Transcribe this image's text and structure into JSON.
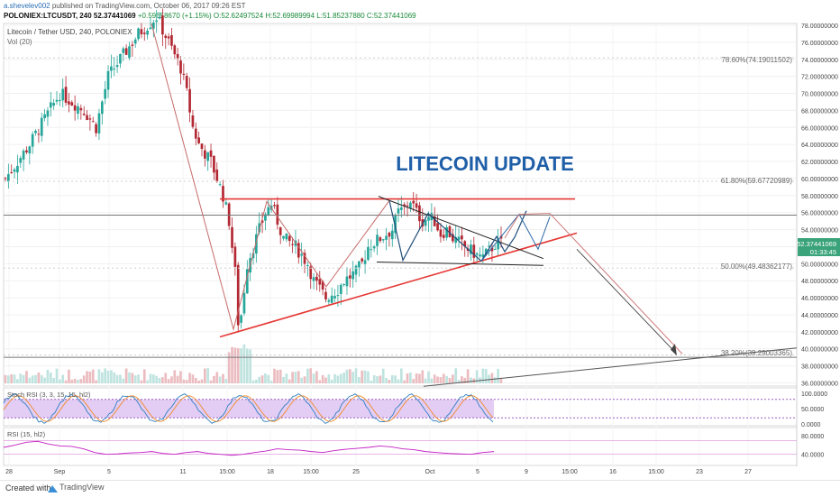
{
  "header": {
    "publisher": "a.shevelev002",
    "published_line": "published on TradingView.com, October 06, 2017 09:26 EST",
    "ticker": "POLONIEX:LTCUSDT, 240",
    "last": "52.37441069",
    "change": "+0.59658670 (+1.15%)",
    "o": "O:52.62497524",
    "h": "H:52.69989994",
    "l": "L:51.85237880",
    "c": "C:52.37441069"
  },
  "legend": {
    "symbol": "Litecoin / Tether USD, 240, POLONIEX",
    "vol": "Vol (20)",
    "stoch": "Stoch RSI (3, 3, 15, 15, hl2)",
    "rsi": "RSI (15, hl2)"
  },
  "annotation": {
    "headline": "LITECOIN UPDATE"
  },
  "fib_labels": {
    "f786": "78.60%(74.19011502)",
    "f618": "61.80%(59.67720989)",
    "f50": "50.00%(49.48362177)",
    "f382": "38.20%(39.29003365)"
  },
  "price_badge": {
    "price": "52.37441069",
    "countdown": "01:33:45"
  },
  "footer": {
    "created": "Created with",
    "brand": "TradingView"
  },
  "colors": {
    "up": "#26a69a",
    "down": "#b22833",
    "wedge": "#e53935",
    "fib": "#7a7a7a",
    "badge": "#3aa37a"
  },
  "chart_data": [
    {
      "type": "candlestick",
      "title": "Litecoin / Tether USD, 240, POLONIEX",
      "yaxis_ticks": [
        "36.00000000",
        "38.00000000",
        "40.00000000",
        "42.00000000",
        "44.00000000",
        "46.00000000",
        "48.00000000",
        "50.00000000",
        "52.00000000",
        "54.00000000",
        "56.00000000",
        "58.00000000",
        "60.00000000",
        "62.00000000",
        "64.00000000",
        "66.00000000",
        "68.00000000",
        "70.00000000",
        "72.00000000",
        "74.00000000",
        "76.00000000",
        "78.00000000"
      ],
      "ylim": [
        35.2,
        78.4
      ],
      "xaxis_ticks": [
        "28",
        "Sep",
        "5",
        "11",
        "15:00",
        "18",
        "15:00",
        "25",
        "Oct",
        "5",
        "9",
        "15:00",
        "16",
        "15:00",
        "23",
        "27"
      ],
      "close_path": [
        [
          0,
          60
        ],
        [
          4,
          64
        ],
        [
          9,
          70
        ],
        [
          13,
          68
        ],
        [
          15,
          66
        ],
        [
          17,
          72
        ],
        [
          19,
          74
        ],
        [
          22,
          77
        ],
        [
          25,
          79
        ],
        [
          27,
          76
        ],
        [
          29,
          73
        ],
        [
          30,
          70
        ],
        [
          31,
          66
        ],
        [
          32,
          64
        ],
        [
          34,
          62
        ],
        [
          35,
          60
        ],
        [
          36,
          58
        ],
        [
          37,
          55
        ],
        [
          38,
          49
        ],
        [
          38.6,
          42
        ],
        [
          39,
          44
        ],
        [
          40,
          50
        ],
        [
          41,
          52
        ],
        [
          43,
          56
        ],
        [
          44,
          57
        ],
        [
          45,
          55
        ],
        [
          46,
          53
        ],
        [
          48,
          52
        ],
        [
          50,
          50
        ],
        [
          51,
          48
        ],
        [
          52,
          47
        ],
        [
          53,
          46
        ],
        [
          54,
          46.5
        ],
        [
          55,
          47
        ],
        [
          56,
          48
        ],
        [
          58,
          49
        ],
        [
          59,
          50
        ],
        [
          60,
          52
        ],
        [
          62,
          53
        ],
        [
          64,
          54
        ],
        [
          65,
          56
        ],
        [
          66,
          56.5
        ],
        [
          67,
          57.5
        ],
        [
          68,
          56
        ],
        [
          69,
          55
        ],
        [
          70,
          55.5
        ],
        [
          71,
          55
        ],
        [
          72,
          53.5
        ],
        [
          73,
          54
        ],
        [
          74,
          53
        ],
        [
          75,
          52.5
        ],
        [
          76,
          52
        ],
        [
          77,
          51.5
        ],
        [
          78,
          51
        ],
        [
          79,
          50.8
        ],
        [
          80,
          51.5
        ],
        [
          81,
          52.3
        ],
        [
          82,
          52.4
        ]
      ],
      "horizontal_levels": [
        {
          "name": "resistance",
          "price": 57.6
        },
        {
          "name": "gray-level",
          "price": 55.7
        },
        {
          "name": "support-gray",
          "price": 39.0
        }
      ],
      "fibonacci": [
        {
          "level": "78.60%",
          "price": 74.19011502
        },
        {
          "level": "61.80%",
          "price": 59.67720989
        },
        {
          "level": "50.00%",
          "price": 49.48362177
        },
        {
          "level": "38.20%",
          "price": 39.29003365
        }
      ],
      "last_price": 52.37441069
    },
    {
      "type": "line",
      "title": "Stoch RSI (3, 3, 15, 15, hl2)",
      "yaxis_ticks": [
        "100.0000",
        "50.0000",
        "0.0000"
      ],
      "ylim": [
        0,
        100
      ],
      "bands": [
        80,
        20
      ]
    },
    {
      "type": "line",
      "title": "RSI (15, hl2)",
      "yaxis_ticks": [
        "80.0000",
        "40.0000"
      ],
      "ylim": [
        20,
        90
      ],
      "values": [
        55,
        60,
        66,
        68,
        62,
        58,
        57,
        52,
        44,
        40,
        41,
        43,
        44,
        46,
        42,
        40,
        44,
        46,
        42,
        40,
        38,
        40,
        44,
        47,
        52,
        50,
        49,
        46,
        44,
        48,
        51,
        53,
        55,
        58,
        56,
        52,
        50,
        46,
        44,
        42,
        41,
        40,
        44,
        46
      ]
    }
  ]
}
